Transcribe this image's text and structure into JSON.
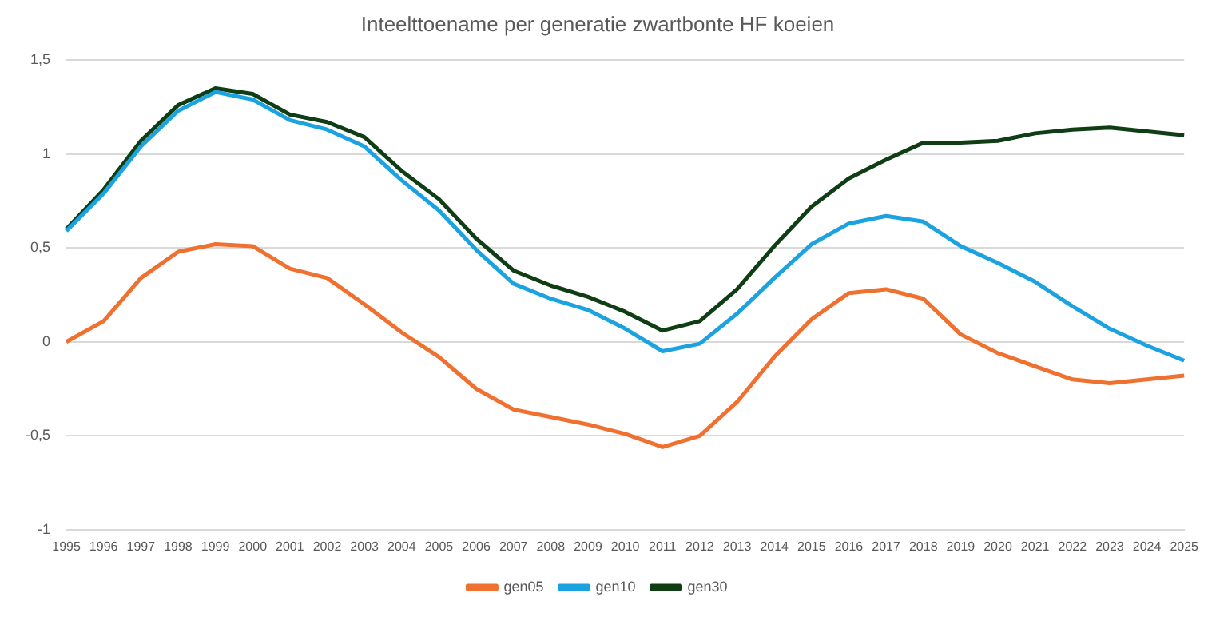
{
  "chart_data": {
    "type": "line",
    "title": "Inteelttoename per generatie zwartbonte HF koeien",
    "categories": [
      "1995",
      "1996",
      "1997",
      "1998",
      "1999",
      "2000",
      "2001",
      "2002",
      "2003",
      "2004",
      "2005",
      "2006",
      "2007",
      "2008",
      "2009",
      "2010",
      "2011",
      "2012",
      "2013",
      "2014",
      "2015",
      "2016",
      "2017",
      "2018",
      "2019",
      "2020",
      "2021",
      "2022",
      "2023",
      "2024",
      "2025"
    ],
    "series": [
      {
        "name": "gen05",
        "color": "#f07030",
        "values": [
          0,
          0.11,
          0.34,
          0.48,
          0.52,
          0.51,
          0.39,
          0.34,
          0.2,
          0.05,
          -0.08,
          -0.25,
          -0.36,
          -0.4,
          -0.44,
          -0.49,
          -0.56,
          -0.5,
          -0.32,
          -0.08,
          0.12,
          0.26,
          0.28,
          0.23,
          0.04,
          -0.06,
          -0.13,
          -0.2,
          -0.22,
          -0.2,
          -0.18
        ]
      },
      {
        "name": "gen10",
        "color": "#1aa3e0",
        "values": [
          0.59,
          0.79,
          1.04,
          1.23,
          1.33,
          1.29,
          1.18,
          1.13,
          1.04,
          0.86,
          0.7,
          0.49,
          0.31,
          0.23,
          0.17,
          0.07,
          -0.05,
          -0.01,
          0.15,
          0.34,
          0.52,
          0.63,
          0.67,
          0.64,
          0.51,
          0.42,
          0.32,
          0.19,
          0.07,
          -0.02,
          -0.1
        ]
      },
      {
        "name": "gen30",
        "color": "#0f3d14",
        "values": [
          0.6,
          0.81,
          1.07,
          1.26,
          1.35,
          1.32,
          1.21,
          1.17,
          1.09,
          0.91,
          0.76,
          0.55,
          0.38,
          0.3,
          0.24,
          0.16,
          0.06,
          0.11,
          0.28,
          0.51,
          0.72,
          0.87,
          0.97,
          1.06,
          1.06,
          1.07,
          1.11,
          1.13,
          1.14,
          1.12,
          1.1
        ]
      }
    ],
    "ylim": [
      -1,
      1.5
    ],
    "yticks": [
      -1,
      {
        "value": -0.5,
        "label": "-0,5"
      },
      0,
      {
        "value": 0.5,
        "label": "0,5"
      },
      1,
      {
        "value": 1.5,
        "label": "1,5"
      }
    ],
    "grid": "y",
    "legend": "bottom",
    "marker": "none",
    "line_style": "solid"
  }
}
